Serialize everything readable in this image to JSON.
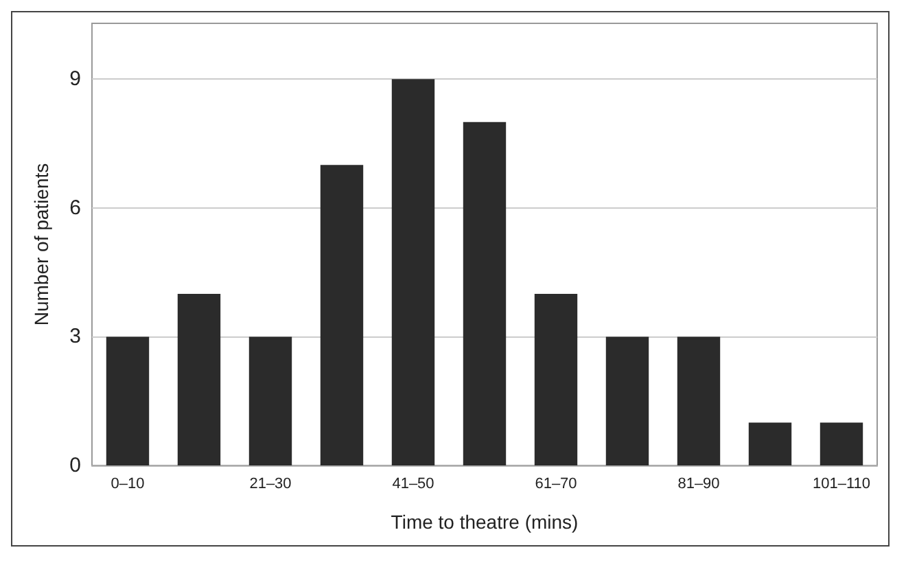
{
  "chart_data": {
    "type": "bar",
    "xlabel": "Time to theatre (mins)",
    "ylabel": "Number of patients",
    "categories": [
      "0–10",
      null,
      "21–30",
      null,
      "41–50",
      null,
      "61–70",
      null,
      "81–90",
      null,
      "101–110"
    ],
    "values": [
      3,
      4,
      3,
      7,
      9,
      8,
      4,
      3,
      3,
      1,
      1
    ],
    "color": "#2b2b2b",
    "ylim": [
      0,
      10.3
    ],
    "yticks": [
      0,
      3,
      6,
      9
    ],
    "grid": "y"
  }
}
